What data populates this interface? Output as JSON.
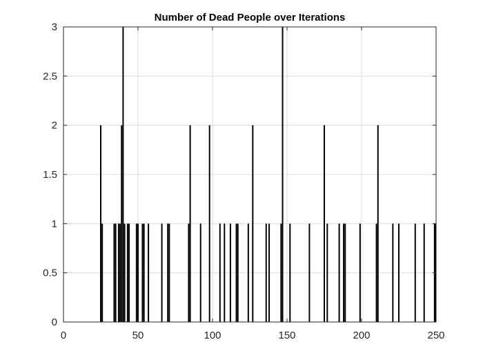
{
  "chart_data": {
    "type": "bar",
    "title": "Number of Dead People over Iterations",
    "xlabel": "",
    "ylabel": "",
    "xlim": [
      0,
      250
    ],
    "ylim": [
      0,
      3
    ],
    "grid": true,
    "x_ticks": [
      0,
      50,
      100,
      150,
      200,
      250
    ],
    "y_ticks": [
      0,
      0.5,
      1,
      1.5,
      2,
      2.5,
      3
    ],
    "x_tick_labels": [
      "0",
      "50",
      "100",
      "150",
      "200",
      "250"
    ],
    "y_tick_labels": [
      "0",
      "0.5",
      "1",
      "1.5",
      "2",
      "2.5",
      "3"
    ],
    "points": [
      {
        "x": 25,
        "y": 2
      },
      {
        "x": 26,
        "y": 1
      },
      {
        "x": 34,
        "y": 1
      },
      {
        "x": 35,
        "y": 1
      },
      {
        "x": 37,
        "y": 1
      },
      {
        "x": 38,
        "y": 1
      },
      {
        "x": 39,
        "y": 2
      },
      {
        "x": 40,
        "y": 3
      },
      {
        "x": 41,
        "y": 1
      },
      {
        "x": 43,
        "y": 1
      },
      {
        "x": 44,
        "y": 1
      },
      {
        "x": 49,
        "y": 1
      },
      {
        "x": 50,
        "y": 1
      },
      {
        "x": 53,
        "y": 1
      },
      {
        "x": 54,
        "y": 1
      },
      {
        "x": 57,
        "y": 1
      },
      {
        "x": 66,
        "y": 1
      },
      {
        "x": 70,
        "y": 1
      },
      {
        "x": 71,
        "y": 1
      },
      {
        "x": 84,
        "y": 1
      },
      {
        "x": 85,
        "y": 2
      },
      {
        "x": 92,
        "y": 1
      },
      {
        "x": 98,
        "y": 2
      },
      {
        "x": 105,
        "y": 1
      },
      {
        "x": 108,
        "y": 1
      },
      {
        "x": 112,
        "y": 1
      },
      {
        "x": 116,
        "y": 1
      },
      {
        "x": 117,
        "y": 1
      },
      {
        "x": 124,
        "y": 1
      },
      {
        "x": 127,
        "y": 2
      },
      {
        "x": 136,
        "y": 1
      },
      {
        "x": 138,
        "y": 1
      },
      {
        "x": 146,
        "y": 1
      },
      {
        "x": 147,
        "y": 3
      },
      {
        "x": 152,
        "y": 1
      },
      {
        "x": 165,
        "y": 1
      },
      {
        "x": 175,
        "y": 2
      },
      {
        "x": 177,
        "y": 1
      },
      {
        "x": 185,
        "y": 1
      },
      {
        "x": 188,
        "y": 1
      },
      {
        "x": 189,
        "y": 1
      },
      {
        "x": 199,
        "y": 1
      },
      {
        "x": 210,
        "y": 1
      },
      {
        "x": 211,
        "y": 2
      },
      {
        "x": 221,
        "y": 1
      },
      {
        "x": 225,
        "y": 1
      },
      {
        "x": 236,
        "y": 1
      },
      {
        "x": 242,
        "y": 1
      },
      {
        "x": 249,
        "y": 1
      },
      {
        "x": 250,
        "y": 1
      }
    ]
  }
}
